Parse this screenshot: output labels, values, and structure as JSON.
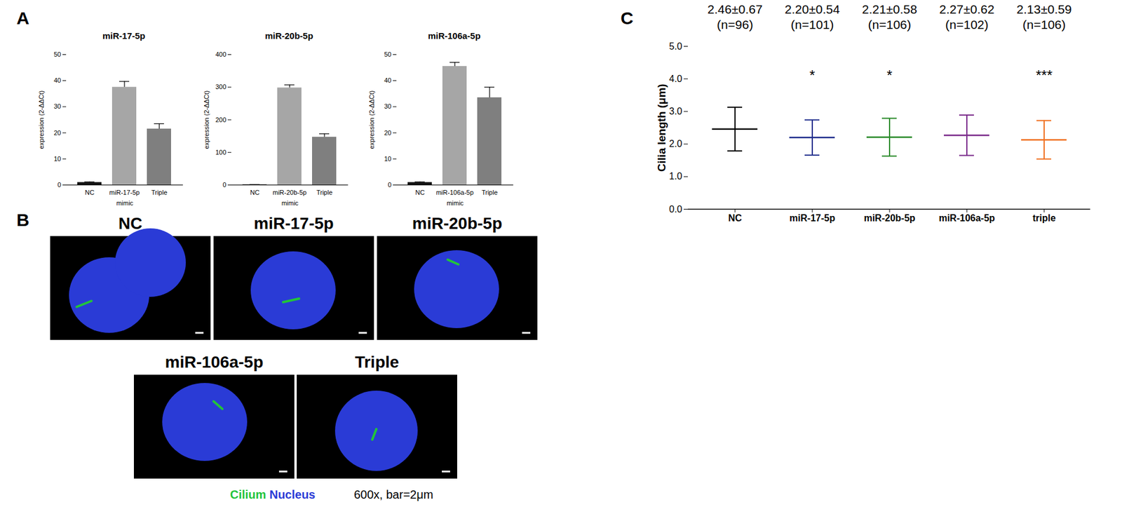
{
  "chart_data": [
    {
      "panel": "A",
      "type": "bar",
      "title": "miR-17-5p",
      "categories": [
        "NC",
        "miR-17-5p",
        "Triple"
      ],
      "values": [
        1,
        37.5,
        21.5
      ],
      "errors": [
        0.2,
        2.2,
        2.0
      ],
      "colors": [
        "#111111",
        "#a6a6a6",
        "#7f7f7f"
      ],
      "ylim": [
        0,
        50
      ],
      "yticks": [
        0,
        10,
        20,
        30,
        40,
        50
      ],
      "y_label": "expression (2-ΔΔCt)",
      "x_label": "mimic"
    },
    {
      "panel": "A",
      "type": "bar",
      "title": "miR-20b-5p",
      "categories": [
        "NC",
        "miR-20b-5p",
        "Triple"
      ],
      "values": [
        1,
        298,
        147
      ],
      "errors": [
        0.3,
        9,
        10
      ],
      "colors": [
        "#111111",
        "#a6a6a6",
        "#7f7f7f"
      ],
      "ylim": [
        0,
        400
      ],
      "yticks": [
        0,
        100,
        200,
        300,
        400
      ],
      "y_label": "expression (2-ΔΔCt)",
      "x_label": "mimic"
    },
    {
      "panel": "A",
      "type": "bar",
      "title": "miR-106a-5p",
      "categories": [
        "NC",
        "miR-106a-5p",
        "Triple"
      ],
      "values": [
        1,
        45.5,
        33.5
      ],
      "errors": [
        0.2,
        1.5,
        4.0
      ],
      "colors": [
        "#111111",
        "#a6a6a6",
        "#7f7f7f"
      ],
      "ylim": [
        0,
        50
      ],
      "yticks": [
        0,
        10,
        20,
        30,
        40,
        50
      ],
      "y_label": "expression (2-ΔΔCt)",
      "x_label": "mimic"
    },
    {
      "panel": "C",
      "type": "dot",
      "categories": [
        "NC",
        "miR-17-5p",
        "miR-20b-5p",
        "miR-106a-5p",
        "triple"
      ],
      "means": [
        2.46,
        2.2,
        2.21,
        2.27,
        2.13
      ],
      "sd": [
        0.67,
        0.54,
        0.58,
        0.62,
        0.59
      ],
      "summary_labels": [
        "2.46±0.67",
        "2.20±0.54",
        "2.21±0.58",
        "2.27±0.62",
        "2.13±0.59"
      ],
      "n_labels": [
        "(n=96)",
        "(n=101)",
        "(n=106)",
        "(n=102)",
        "(n=106)"
      ],
      "significance": [
        null,
        "*",
        "*",
        null,
        "***"
      ],
      "colors": [
        "#000000",
        "#1f2d8c",
        "#2a8a2a",
        "#7a2a8a",
        "#f07020"
      ],
      "ylim": [
        0,
        5
      ],
      "yticks": [
        0,
        1,
        2,
        3,
        4,
        5
      ],
      "y_label": "Cilia length (μm)"
    }
  ],
  "panel_letters": [
    "A",
    "B",
    "C"
  ],
  "image_panel": {
    "labels": [
      "NC",
      "miR-17-5p",
      "miR-20b-5p",
      "miR-106a-5p",
      "Triple"
    ],
    "legend": [
      {
        "text": "Cilium",
        "color": "#22c43a"
      },
      {
        "text": "Nucleus",
        "color": "#2a3bd6"
      }
    ],
    "note": "600x, bar=2μm"
  }
}
